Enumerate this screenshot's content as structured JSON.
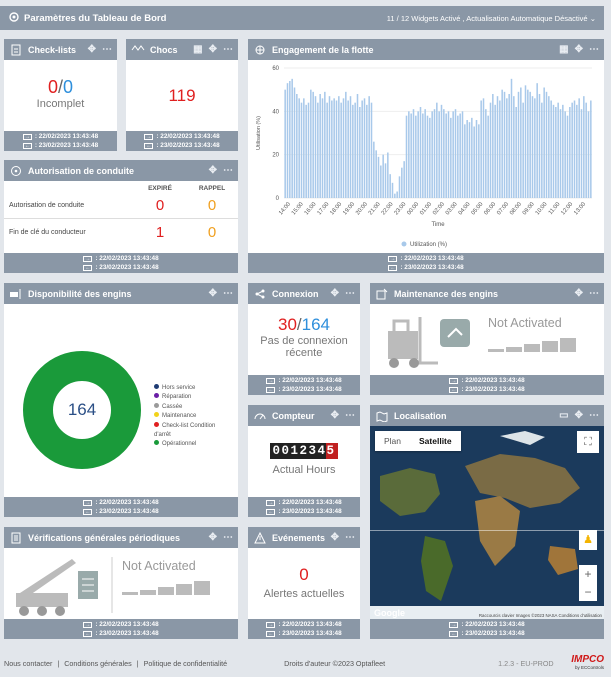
{
  "topbar": {
    "title": "Paramètres du Tableau de Bord",
    "status": "11 / 12 Widgets Activé , Actualisation Automatique Désactivé"
  },
  "dates": {
    "d1": ": 22/02/2023 13:43:48",
    "d2": ": 23/02/2023 13:43:48"
  },
  "checklists": {
    "title": "Check-lists",
    "a": "0",
    "sep": "/",
    "b": "0",
    "label": "Incomplet"
  },
  "chocs": {
    "title": "Chocs",
    "value": "119"
  },
  "engagement": {
    "title": "Engagement de la flotte",
    "ylabel": "Utilisation (%)",
    "xlabel": "Time",
    "legend": "Utilization (%)"
  },
  "chart_data": {
    "type": "bar",
    "title": "",
    "xlabel": "Time",
    "ylabel": "Utilisation (%)",
    "ylim": [
      0,
      60
    ],
    "yticks": [
      "0",
      "20",
      "40",
      "60"
    ],
    "xticks": [
      "14:00",
      "15:00",
      "16:00",
      "17:00",
      "18:00",
      "19:00",
      "20:00",
      "21:00",
      "22:00",
      "23:00",
      "00:00",
      "01:00",
      "02:00",
      "03:00",
      "04:00",
      "05:00",
      "06:00",
      "07:00",
      "08:00",
      "09:00",
      "10:00",
      "11:00",
      "12:00",
      "13:00"
    ],
    "series": [
      {
        "name": "Utilization (%)",
        "values": [
          50,
          53,
          54,
          55,
          51,
          48,
          46,
          44,
          46,
          43,
          44,
          50,
          49,
          47,
          44,
          48,
          46,
          49,
          44,
          47,
          45,
          46,
          45,
          47,
          44,
          46,
          49,
          45,
          47,
          43,
          44,
          48,
          42,
          45,
          46,
          43,
          47,
          44,
          26,
          22,
          19,
          15,
          20,
          16,
          21,
          11,
          7,
          2,
          3,
          10,
          14,
          17,
          38,
          40,
          39,
          41,
          38,
          40,
          42,
          39,
          41,
          38,
          37,
          40,
          41,
          44,
          40,
          43,
          41,
          39,
          40,
          37,
          40,
          41,
          38,
          39,
          40,
          34,
          36,
          35,
          37,
          33,
          36,
          34,
          45,
          46,
          41,
          38,
          44,
          48,
          43,
          47,
          45,
          50,
          49,
          46,
          48,
          55,
          47,
          42,
          49,
          51,
          44,
          52,
          50,
          49,
          47,
          46,
          53,
          48,
          44,
          51,
          49,
          47,
          45,
          43,
          42,
          44,
          41,
          43,
          40,
          38,
          42,
          44,
          45,
          43,
          46,
          41,
          47,
          44,
          40,
          45
        ]
      }
    ]
  },
  "autorisation": {
    "title": "Autorisation de conduite",
    "col1": "EXPIRÉ",
    "col2": "RAPPEL",
    "rows": [
      {
        "label": "Autorisation de conduite",
        "a": "0",
        "b": "0"
      },
      {
        "label": "Fin de clé du conducteur",
        "a": "1",
        "b": "0"
      }
    ]
  },
  "dispo": {
    "title": "Disponibilité des engins",
    "center": "164",
    "legend": [
      {
        "label": "Hors service",
        "color": "#1f3b73"
      },
      {
        "label": "Réparation",
        "color": "#6a1fa6"
      },
      {
        "label": "Cassée",
        "color": "#9a9a9a"
      },
      {
        "label": "Maintenance",
        "color": "#f2d21a"
      },
      {
        "label": "Check-list Condition d'arrêt",
        "color": "#e02020"
      },
      {
        "label": "Opérationnel",
        "color": "#1a9a3a"
      }
    ]
  },
  "connexion": {
    "title": "Connexion",
    "a": "30",
    "sep": "/",
    "b": "164",
    "label1": "Pas de connexion",
    "label2": "récente"
  },
  "maintenance": {
    "title": "Maintenance des engins",
    "status": "Not Activated"
  },
  "compteur": {
    "title": "Compteur",
    "digits": "0012345",
    "label": "Actual Hours"
  },
  "localisation": {
    "title": "Localisation",
    "plan": "Plan",
    "satellite": "Satellite",
    "google": "Google",
    "attrib": "Raccourcis clavier   Images ©2023 NASA   Conditions d'utilisation"
  },
  "vgp": {
    "title": "Vérifications générales périodiques",
    "status": "Not Activated"
  },
  "evenements": {
    "title": "Evénements",
    "value": "0",
    "label": "Alertes actuelles"
  },
  "footer": {
    "contact": "Nous contacter",
    "sep1": "|",
    "conditions": "Conditions générales",
    "sep2": "|",
    "privacy": "Politique de confidentialité",
    "copyright": "Droits d'auteur ©2023 Optafleet",
    "version": "1.2.3 - EU-PROD",
    "brand": "IMPCO",
    "brand_sub": "by ECControls"
  }
}
